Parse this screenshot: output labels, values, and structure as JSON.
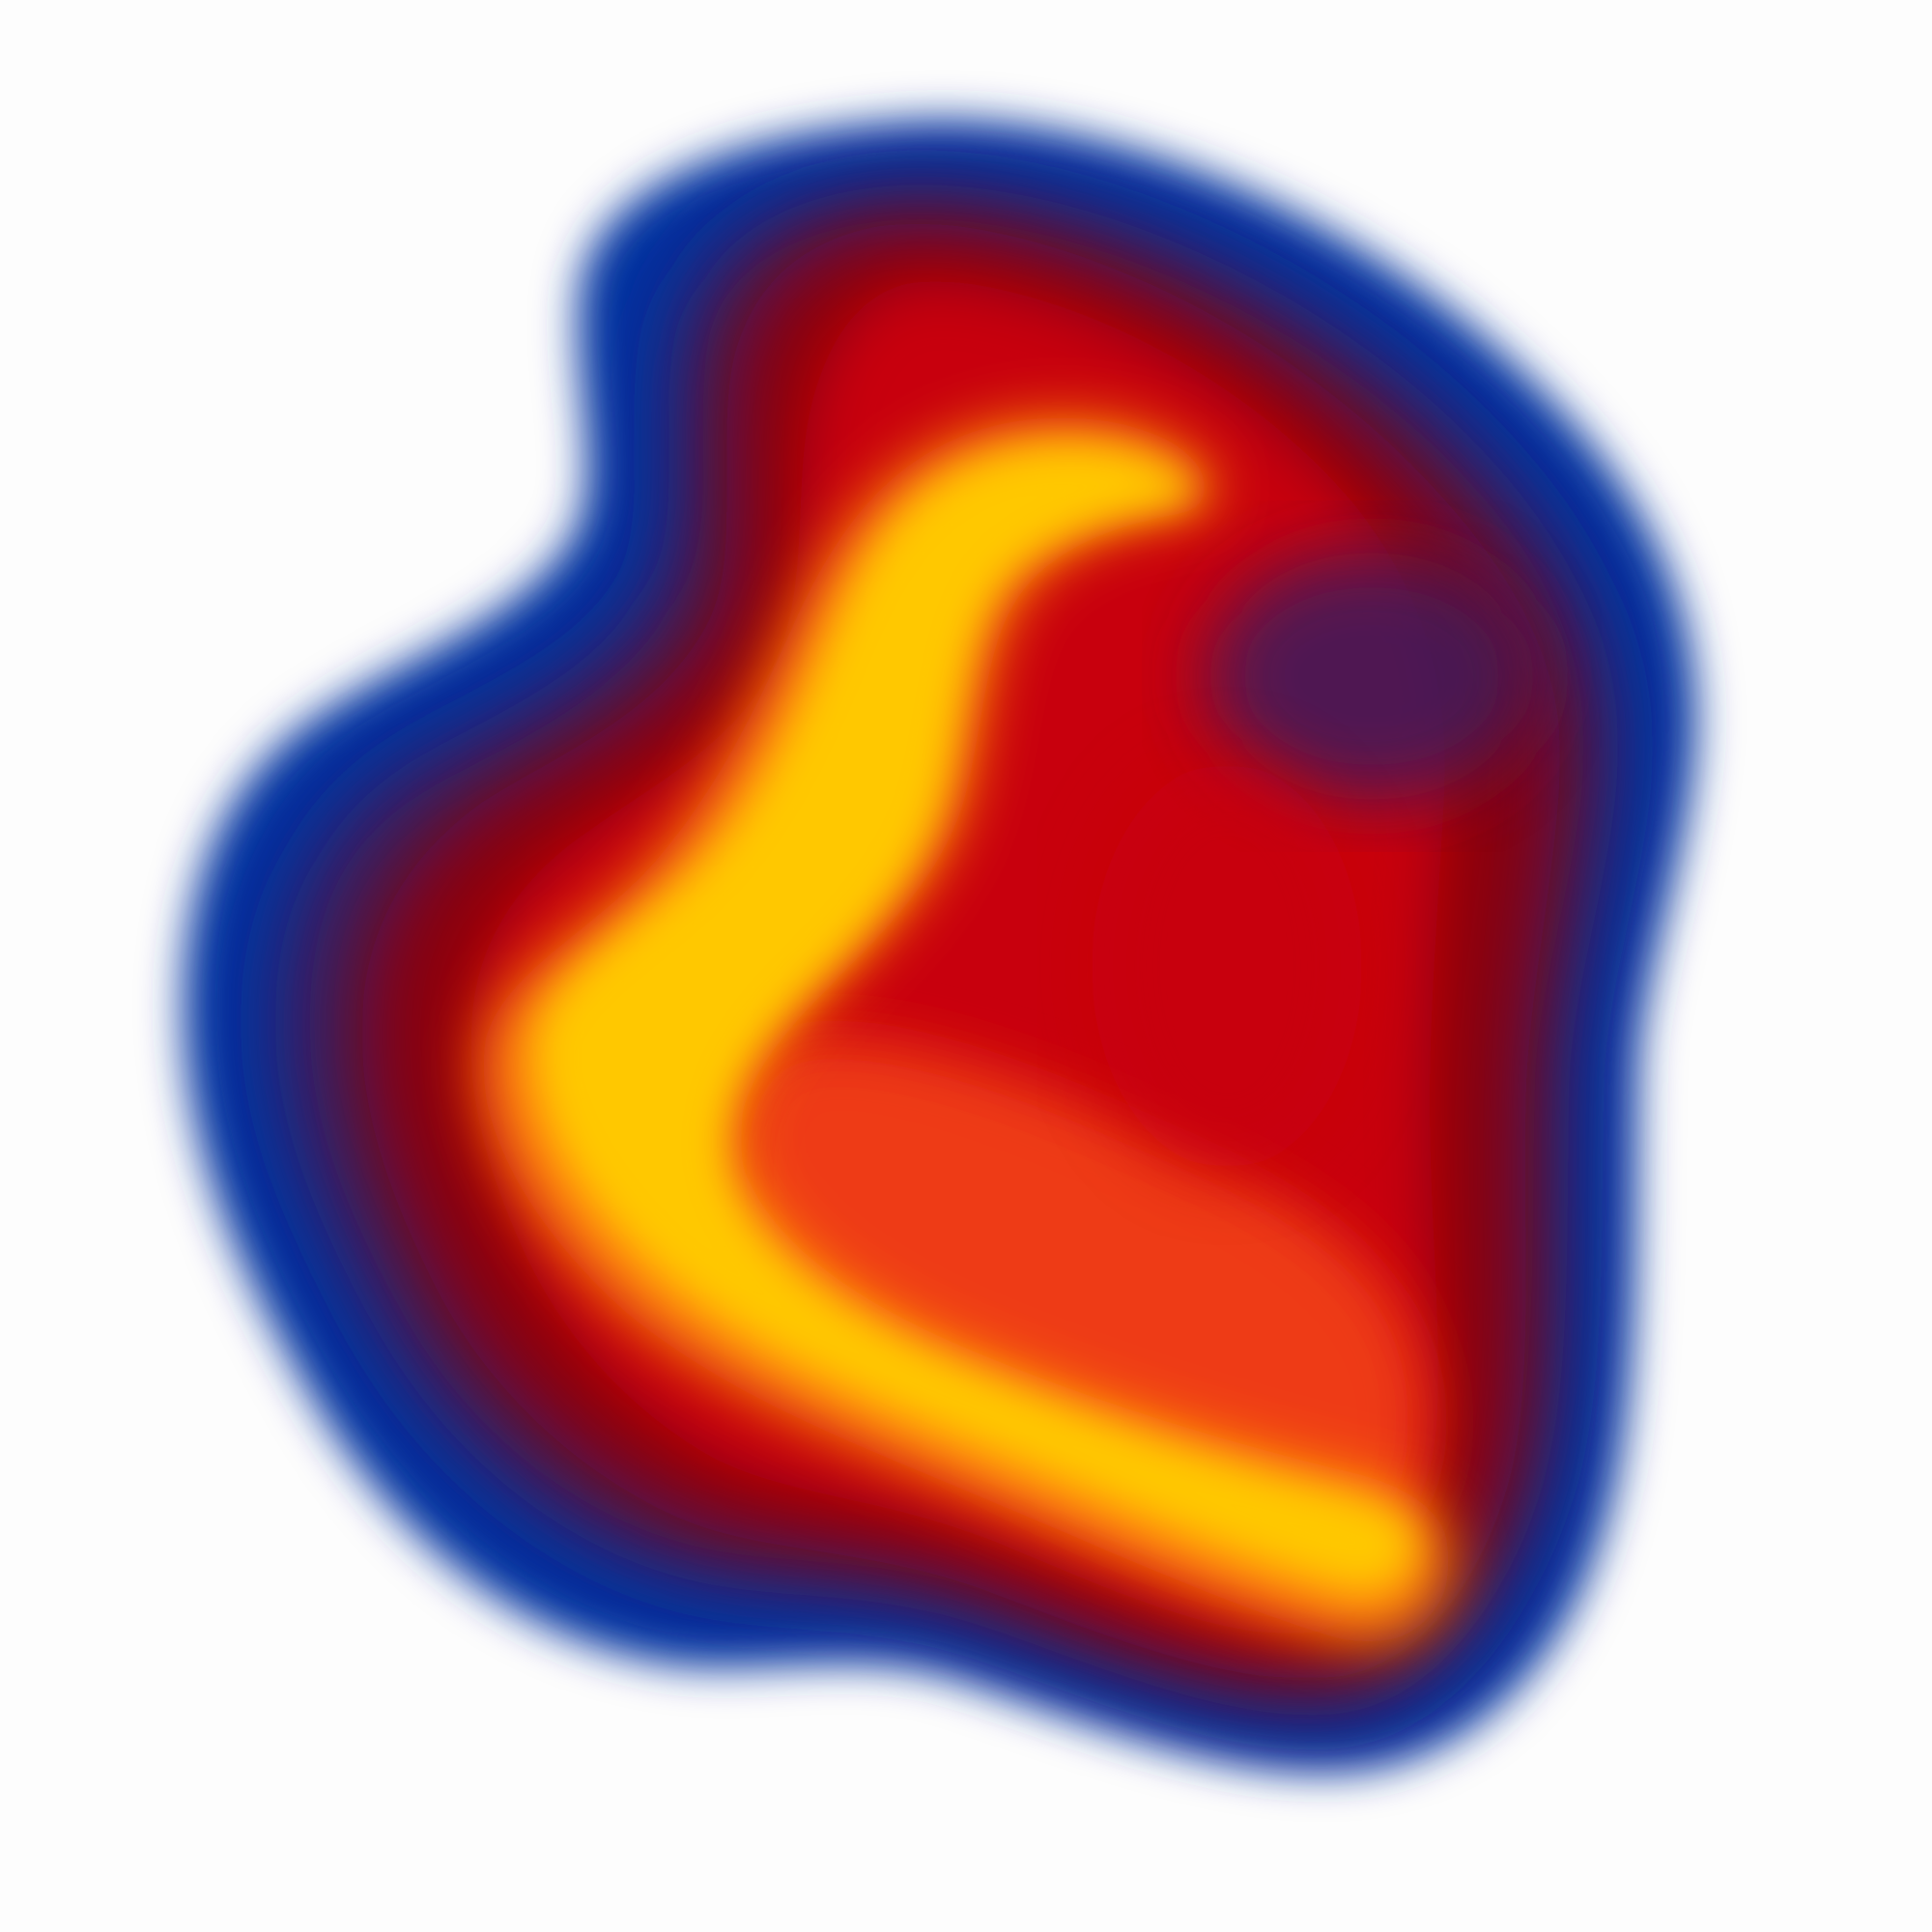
{
  "image": {
    "subject": "blurred-abstract-blob",
    "background_color": "#fdfdfd",
    "palette": {
      "outer_blue": "#0033a0",
      "deep_purple": "#3a1a5e",
      "maroon": "#8a0010",
      "crimson": "#c80010",
      "red_orange": "#ee3a18",
      "orange": "#ff8a10",
      "yellow": "#ffc800"
    }
  }
}
